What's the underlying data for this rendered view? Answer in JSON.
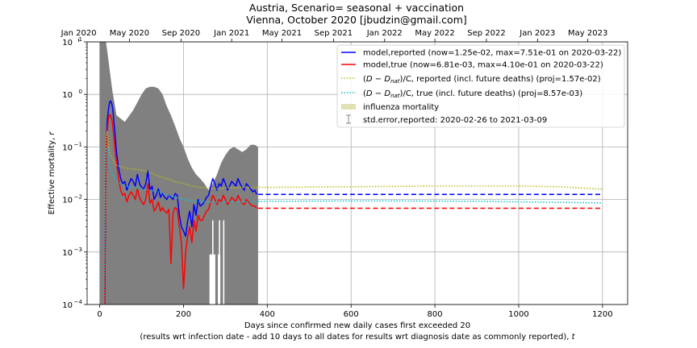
{
  "chart_data": {
    "type": "line",
    "title": "Austria, Scenario= seasonal + vaccination",
    "subtitle": "Vienna, October 2020 [jbudzin@gmail.com]",
    "xlabel_line1": "Days since confirmed new daily cases first exceeded 20",
    "xlabel_line2": "(results wrt infection date - add 10 days to all dates for results wrt diagnosis date as commonly reported), ",
    "xlabel_var": "t",
    "ylabel": "Effective mortality, ",
    "ylabel_var": "r",
    "xlim": [
      -30,
      1260
    ],
    "ylim": [
      0.0001,
      10
    ],
    "yscale": "log",
    "grid": true,
    "legend_position": "top-right",
    "x_ticks": [
      0,
      200,
      400,
      600,
      800,
      1000,
      1200
    ],
    "x_tick_labels": [
      "0",
      "200",
      "400",
      "600",
      "800",
      "1000",
      "1200"
    ],
    "y_ticks": [
      0.0001,
      0.001,
      0.01,
      0.1,
      1,
      10
    ],
    "y_tick_labels": [
      {
        "base": "10",
        "exp": "−4"
      },
      {
        "base": "10",
        "exp": "−3"
      },
      {
        "base": "10",
        "exp": "−2"
      },
      {
        "base": "10",
        "exp": "−1"
      },
      {
        "base": "10",
        "exp": "0"
      },
      {
        "base": "10",
        "exp": "1"
      }
    ],
    "top_axis": {
      "labels": [
        "Jan 2020",
        "May 2020",
        "Sep 2020",
        "Jan 2021",
        "May 2021",
        "Sep 2021",
        "Jan 2022",
        "May 2022",
        "Sep 2022",
        "Jan 2023",
        "May 2023"
      ],
      "x": [
        -50,
        71,
        194,
        315,
        435,
        558,
        680,
        800,
        923,
        1045,
        1165
      ]
    },
    "influenza_band": {
      "x": [
        0,
        378
      ],
      "y": [
        0.001,
        0.002
      ],
      "color": "#d9d9a0"
    },
    "error_band": {
      "color": "#808080",
      "x": [
        0,
        10,
        15,
        20,
        30,
        40,
        60,
        80,
        100,
        110,
        120,
        130,
        140,
        150,
        160,
        170,
        180,
        190,
        200,
        210,
        220,
        230,
        240,
        250,
        260,
        270,
        280,
        290,
        300,
        310,
        320,
        330,
        340,
        350,
        360,
        370,
        378
      ],
      "upper": [
        10,
        10,
        10,
        5,
        1.2,
        0.4,
        0.3,
        0.5,
        1.0,
        1.3,
        1.4,
        1.4,
        1.3,
        1.0,
        0.6,
        0.4,
        0.25,
        0.15,
        0.1,
        0.06,
        0.04,
        0.03,
        0.025,
        0.02,
        0.015,
        0.02,
        0.03,
        0.05,
        0.07,
        0.09,
        0.1,
        0.09,
        0.08,
        0.09,
        0.11,
        0.11,
        0.1
      ],
      "lower": [
        0.0001,
        0.0001,
        0.0001,
        0.0001,
        0.0001,
        0.0001,
        0.0001,
        0.0001,
        0.0001,
        0.0001,
        0.0001,
        0.0001,
        0.0001,
        0.0001,
        0.0001,
        0.0001,
        0.0001,
        0.0001,
        0.0001,
        0.0001,
        0.0001,
        0.0001,
        0.0001,
        0.0001,
        0.0001,
        0.0001,
        0.0001,
        0.0001,
        0.0001,
        0.0001,
        0.0001,
        0.0001,
        0.0001,
        0.0001,
        0.0001,
        0.0001,
        0.0001
      ]
    },
    "gaps": [
      {
        "x": [
          262,
          276
        ],
        "y_top": 0.0009
      },
      {
        "x": [
          282,
          288
        ],
        "y_top": 0.0009
      }
    ],
    "white_spikes": [
      {
        "x": 270,
        "y": 0.004
      },
      {
        "x": 286,
        "y": 0.004
      },
      {
        "x": 296,
        "y": 0.004
      }
    ],
    "series": [
      {
        "name": "model,reported (now=1.25e-02, max=7.51e-01 on 2020-03-22)",
        "color": "#0000ff",
        "style": "solid",
        "x": [
          12,
          14,
          16,
          18,
          20,
          22,
          24,
          26,
          28,
          30,
          32,
          34,
          36,
          38,
          40,
          45,
          50,
          55,
          60,
          65,
          70,
          75,
          80,
          85,
          90,
          95,
          100,
          105,
          110,
          115,
          120,
          125,
          130,
          135,
          140,
          145,
          150,
          155,
          160,
          165,
          170,
          175,
          180,
          185,
          190,
          195,
          200,
          205,
          210,
          215,
          220,
          225,
          230,
          235,
          240,
          245,
          250,
          255,
          260,
          265,
          270,
          275,
          280,
          285,
          290,
          295,
          300,
          305,
          310,
          315,
          320,
          325,
          330,
          335,
          340,
          345,
          350,
          355,
          360,
          365,
          370,
          375
        ],
        "y": [
          0.0001,
          0.02,
          0.12,
          0.3,
          0.45,
          0.6,
          0.72,
          0.75,
          0.7,
          0.6,
          0.45,
          0.3,
          0.2,
          0.13,
          0.08,
          0.04,
          0.025,
          0.02,
          0.022,
          0.015,
          0.02,
          0.025,
          0.022,
          0.018,
          0.03,
          0.02,
          0.017,
          0.016,
          0.02,
          0.035,
          0.015,
          0.018,
          0.01,
          0.012,
          0.016,
          0.011,
          0.013,
          0.011,
          0.01,
          0.012,
          0.011,
          0.01,
          0.013,
          0.012,
          0.005,
          0.003,
          0.0025,
          0.002,
          0.004,
          0.006,
          0.003,
          0.008,
          0.005,
          0.01,
          0.0075,
          0.008,
          0.009,
          0.011,
          0.012,
          0.018,
          0.025,
          0.02,
          0.015,
          0.02,
          0.018,
          0.025,
          0.02,
          0.015,
          0.018,
          0.022,
          0.02,
          0.018,
          0.025,
          0.02,
          0.017,
          0.015,
          0.02,
          0.018,
          0.016,
          0.014,
          0.015,
          0.0125
        ]
      },
      {
        "name": "model,true (now=6.81e-03, max=4.10e-01 on 2020-03-22)",
        "color": "#ff0000",
        "style": "solid",
        "x": [
          12,
          14,
          16,
          18,
          20,
          22,
          24,
          26,
          28,
          30,
          32,
          34,
          36,
          38,
          40,
          45,
          50,
          55,
          60,
          65,
          70,
          75,
          80,
          85,
          90,
          95,
          100,
          105,
          110,
          115,
          120,
          125,
          130,
          135,
          140,
          145,
          150,
          155,
          160,
          165,
          170,
          175,
          180,
          185,
          190,
          195,
          200,
          205,
          210,
          215,
          220,
          225,
          230,
          235,
          240,
          245,
          250,
          255,
          260,
          265,
          270,
          275,
          280,
          285,
          290,
          295,
          300,
          305,
          310,
          315,
          320,
          325,
          330,
          335,
          340,
          345,
          350,
          355,
          360,
          365,
          370,
          375
        ],
        "y": [
          0.0001,
          0.015,
          0.08,
          0.2,
          0.3,
          0.38,
          0.41,
          0.4,
          0.35,
          0.3,
          0.22,
          0.15,
          0.1,
          0.07,
          0.05,
          0.025,
          0.015,
          0.012,
          0.013,
          0.009,
          0.012,
          0.014,
          0.012,
          0.01,
          0.016,
          0.011,
          0.009,
          0.008,
          0.01,
          0.02,
          0.0085,
          0.01,
          0.006,
          0.007,
          0.009,
          0.006,
          0.007,
          0.006,
          0.0055,
          0.0065,
          0.0006,
          0.0055,
          0.007,
          0.0065,
          0.003,
          0.0015,
          0.0002,
          0.001,
          0.002,
          0.003,
          0.0015,
          0.004,
          0.0025,
          0.005,
          0.004,
          0.004,
          0.005,
          0.006,
          0.0065,
          0.009,
          0.012,
          0.01,
          0.008,
          0.01,
          0.009,
          0.012,
          0.01,
          0.008,
          0.009,
          0.011,
          0.01,
          0.009,
          0.012,
          0.01,
          0.0085,
          0.008,
          0.01,
          0.009,
          0.008,
          0.0075,
          0.0075,
          0.0068
        ]
      },
      {
        "name": "model,reported (projection)",
        "color": "#0000ff",
        "style": "dashed",
        "in_legend": false,
        "x": [
          378,
          1200
        ],
        "y": [
          0.0125,
          0.0125
        ]
      },
      {
        "name": "model,true (projection)",
        "color": "#ff0000",
        "style": "dashed",
        "in_legend": false,
        "x": [
          378,
          1200
        ],
        "y": [
          0.0068,
          0.0068
        ]
      },
      {
        "name_prefix": "(",
        "name_suffix": ")/C, reported (incl. future deaths) (proj=1.57e-02)",
        "color": "#bcbd22",
        "style": "dotted",
        "x": [
          10,
          14,
          16,
          18,
          20,
          22,
          25,
          30,
          40,
          60,
          80,
          100,
          120,
          130,
          140,
          160,
          180,
          200,
          220,
          240,
          260,
          280,
          300,
          340,
          400,
          500,
          600,
          700,
          800,
          900,
          1000,
          1100,
          1150,
          1200
        ],
        "y": [
          0.0001,
          0.05,
          0.15,
          0.2,
          0.15,
          0.1,
          0.07,
          0.06,
          0.045,
          0.04,
          0.038,
          0.036,
          0.033,
          0.03,
          0.028,
          0.025,
          0.022,
          0.02,
          0.018,
          0.017,
          0.0165,
          0.016,
          0.0165,
          0.017,
          0.017,
          0.0172,
          0.0175,
          0.0178,
          0.018,
          0.018,
          0.018,
          0.0175,
          0.0165,
          0.0157
        ]
      },
      {
        "name_prefix": "(",
        "name_suffix": ")/C, true (incl. future deaths) (proj=8.57e-03)",
        "color": "#17becf",
        "style": "dotted",
        "x": [
          10,
          14,
          16,
          18,
          20,
          22,
          25,
          30,
          40,
          60,
          80,
          100,
          120,
          140,
          160,
          180,
          200,
          220,
          240,
          260,
          280,
          300,
          340,
          400,
          500,
          600,
          700,
          800,
          900,
          1000,
          1100,
          1200
        ],
        "y": [
          0.0001,
          0.03,
          0.08,
          0.1,
          0.08,
          0.06,
          0.04,
          0.03,
          0.022,
          0.018,
          0.017,
          0.016,
          0.015,
          0.014,
          0.012,
          0.011,
          0.01,
          0.0095,
          0.009,
          0.009,
          0.0088,
          0.009,
          0.009,
          0.0092,
          0.0093,
          0.0094,
          0.0094,
          0.0093,
          0.0092,
          0.009,
          0.0088,
          0.0086
        ]
      }
    ],
    "legend": {
      "series_reported": "model,reported (now=1.25e-02, max=7.51e-01 on 2020-03-22)",
      "series_true": "model,true (now=6.81e-03, max=4.10e-01 on 2020-03-22)",
      "ratio_reported_suffix": ")/C, reported (incl. future deaths) (proj=1.57e-02)",
      "ratio_true_suffix": ")/C, true (incl. future deaths) (proj=8.57e-03)",
      "ratio_open": "(",
      "ratio_D": "D",
      "ratio_minus": " − ",
      "ratio_Dnat": "D",
      "ratio_nat": "nat",
      "influenza": "influenza mortality",
      "stderr": "std.error,reported: 2020-02-26 to 2021-03-09"
    }
  }
}
